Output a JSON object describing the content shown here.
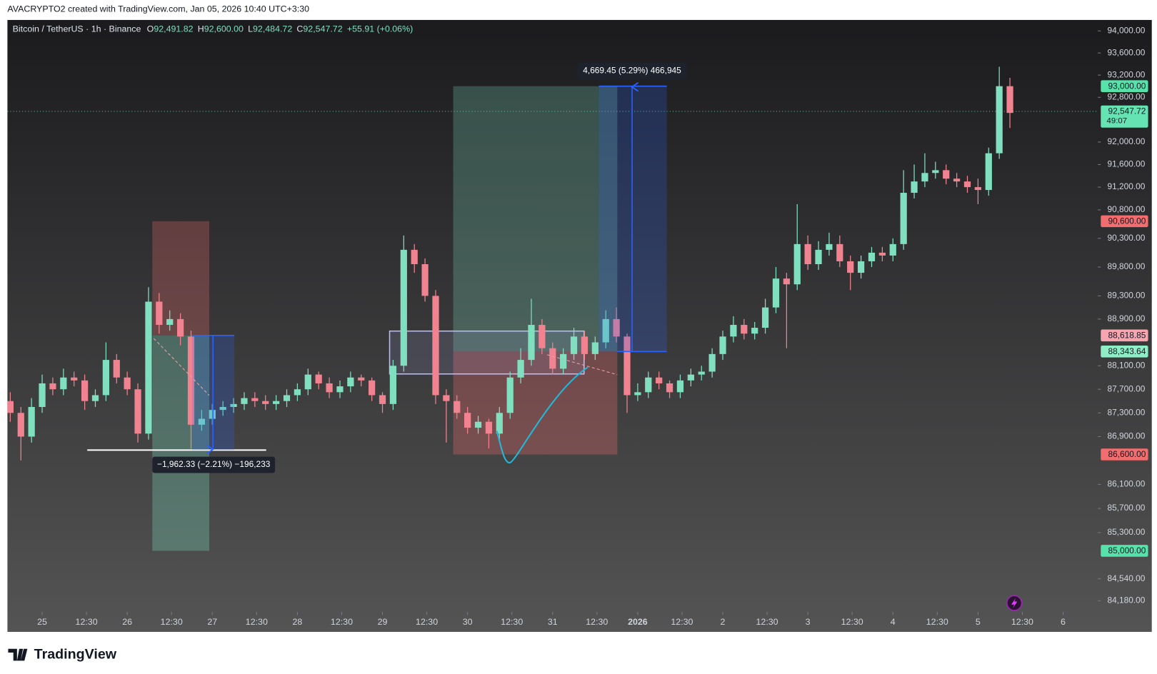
{
  "header": "AVACRYPTO2 created with TradingView.com, Jan 05, 2026 10:40 UTC+3:30",
  "footer": "TradingView",
  "chart_data": {
    "type": "candlestick",
    "title": "Bitcoin / TetherUS · 1h · Binance",
    "legend_values": [
      {
        "key": "O",
        "value": "92,491.82"
      },
      {
        "key": "H",
        "value": "92,600.00"
      },
      {
        "key": "L",
        "value": "92,484.72"
      },
      {
        "key": "C",
        "value": "92,547.72"
      }
    ],
    "change": "+55.91 (+0.06%)",
    "up_color": "#7fdfbf",
    "down_color": "#f0838f",
    "log_scale": true,
    "xlim": [
      -9.8,
      297.8
    ],
    "ylim": [
      84000,
      94200
    ],
    "xticks": [
      {
        "value": 0,
        "label": "25"
      },
      {
        "value": 12.5,
        "label": "12:30"
      },
      {
        "value": 24,
        "label": "26"
      },
      {
        "value": 36.5,
        "label": "12:30"
      },
      {
        "value": 48,
        "label": "27"
      },
      {
        "value": 60.5,
        "label": "12:30"
      },
      {
        "value": 72,
        "label": "28"
      },
      {
        "value": 84.5,
        "label": "12:30"
      },
      {
        "value": 96,
        "label": "29"
      },
      {
        "value": 108.5,
        "label": "12:30"
      },
      {
        "value": 120,
        "label": "30"
      },
      {
        "value": 132.5,
        "label": "12:30"
      },
      {
        "value": 144,
        "label": "31"
      },
      {
        "value": 156.5,
        "label": "12:30"
      },
      {
        "value": 168,
        "label": "2026"
      },
      {
        "value": 180.5,
        "label": "12:30"
      },
      {
        "value": 192,
        "label": "2"
      },
      {
        "value": 204.5,
        "label": "12:30"
      },
      {
        "value": 216,
        "label": "3"
      },
      {
        "value": 228.5,
        "label": "12:30"
      },
      {
        "value": 240,
        "label": "4"
      },
      {
        "value": 252.5,
        "label": "12:30"
      },
      {
        "value": 264,
        "label": "5"
      },
      {
        "value": 276.5,
        "label": "12:30"
      },
      {
        "value": 288,
        "label": "6"
      }
    ],
    "yticks": [
      {
        "value": 94000,
        "label": "94,000.00"
      },
      {
        "value": 93600,
        "label": "93,600.00"
      },
      {
        "value": 93200,
        "label": "93,200.00"
      },
      {
        "value": 92800,
        "label": "92,800.00"
      },
      {
        "value": 92000,
        "label": "92,000.00"
      },
      {
        "value": 91600,
        "label": "91,600.00"
      },
      {
        "value": 91200,
        "label": "91,200.00"
      },
      {
        "value": 90800,
        "label": "90,800.00"
      },
      {
        "value": 90300,
        "label": "90,300.00"
      },
      {
        "value": 89800,
        "label": "89,800.00"
      },
      {
        "value": 89300,
        "label": "89,300.00"
      },
      {
        "value": 88900,
        "label": "88,900.00"
      },
      {
        "value": 88100,
        "label": "88,100.00"
      },
      {
        "value": 87700,
        "label": "87,700.00"
      },
      {
        "value": 87300,
        "label": "87,300.00"
      },
      {
        "value": 86900,
        "label": "86,900.00"
      },
      {
        "value": 86100,
        "label": "86,100.00"
      },
      {
        "value": 85700,
        "label": "85,700.00"
      },
      {
        "value": 85300,
        "label": "85,300.00"
      },
      {
        "value": 84540,
        "label": "84,540.00"
      },
      {
        "value": 84180,
        "label": "84,180.00"
      }
    ],
    "price_labels": [
      {
        "value": 93000,
        "label": "93,000.00",
        "color": "#55e3aa"
      },
      {
        "value": 90600,
        "label": "90,600.00",
        "color": "#f26d6d"
      },
      {
        "value": 88618.85,
        "label": "88,618.85",
        "color": "#f7a6b0"
      },
      {
        "value": 88343.64,
        "label": "88,343.64",
        "color": "#8eefc6"
      },
      {
        "value": 86600,
        "label": "86,600.00",
        "color": "#f26d6d"
      },
      {
        "value": 85000,
        "label": "85,000.00",
        "color": "#55e3aa"
      }
    ],
    "last_price": {
      "value": 92547.72,
      "label": "92,547.72",
      "countdown": "49:07",
      "color": "#66e3b3"
    },
    "measures": [
      {
        "label": "4,669.45 (5.29%) 466,945"
      },
      {
        "label": "−1,962.33 (−2.21%) −196,233"
      }
    ],
    "x": [
      -9,
      -6,
      -3,
      0,
      3,
      6,
      9,
      12,
      15,
      18,
      21,
      24,
      27,
      30,
      33,
      36,
      39,
      42,
      45,
      48,
      51,
      54,
      57,
      60,
      63,
      66,
      69,
      72,
      75,
      78,
      81,
      84,
      87,
      90,
      93,
      96,
      99,
      102,
      105,
      108,
      111,
      114,
      117,
      120,
      123,
      126,
      129,
      132,
      135,
      138,
      141,
      144,
      147,
      150,
      153,
      156,
      159,
      162,
      165,
      168,
      171,
      174,
      177,
      180,
      183,
      186,
      189,
      192,
      195,
      198,
      201,
      204,
      207,
      210,
      213,
      216,
      219,
      222,
      225,
      228,
      231,
      234,
      237,
      240,
      243,
      246,
      249,
      252,
      255,
      258,
      261,
      264,
      267,
      270,
      273
    ],
    "open": [
      87500,
      87300,
      86900,
      87400,
      87800,
      87700,
      87900,
      87850,
      87500,
      87600,
      88200,
      87900,
      87700,
      86950,
      89200,
      88800,
      88900,
      88600,
      87100,
      87200,
      87350,
      87400,
      87450,
      87550,
      87500,
      87450,
      87500,
      87600,
      87700,
      87950,
      87800,
      87650,
      87750,
      87900,
      87850,
      87600,
      87450,
      88100,
      90100,
      89850,
      89300,
      87600,
      87500,
      87300,
      87050,
      87150,
      86950,
      87300,
      87900,
      88200,
      88800,
      88400,
      88050,
      88300,
      88600,
      88300,
      88500,
      88900,
      88600,
      87600,
      87650,
      87900,
      87800,
      87650,
      87850,
      87950,
      88000,
      88300,
      88600,
      88800,
      88650,
      88750,
      89100,
      89600,
      89500,
      90200,
      89850,
      90100,
      90200,
      89900,
      89700,
      89900,
      90050,
      90000,
      90200,
      91100,
      91300,
      91450,
      91500,
      91350,
      91300,
      91200,
      91150,
      91800,
      93000
    ],
    "high": [
      87650,
      87400,
      87550,
      87950,
      87900,
      88050,
      88000,
      87950,
      87700,
      88500,
      88300,
      88000,
      87800,
      89450,
      89350,
      89050,
      89000,
      88700,
      87350,
      87450,
      87500,
      87550,
      87650,
      87650,
      87600,
      87600,
      87700,
      87800,
      88050,
      88000,
      87900,
      87850,
      88000,
      87950,
      87900,
      87650,
      88200,
      90350,
      90200,
      89950,
      89400,
      87700,
      87600,
      87400,
      87250,
      87200,
      87400,
      88000,
      88400,
      89250,
      88900,
      88500,
      88400,
      88750,
      88700,
      88600,
      89050,
      89100,
      88650,
      87800,
      88000,
      88000,
      87850,
      87950,
      88050,
      88100,
      88400,
      88700,
      88950,
      88900,
      88850,
      89250,
      89800,
      89700,
      90900,
      90350,
      90250,
      90400,
      90350,
      90000,
      90000,
      90150,
      90150,
      90300,
      91500,
      91600,
      91800,
      91650,
      91600,
      91450,
      91400,
      91350,
      91900,
      93350,
      93150
    ],
    "low": [
      87150,
      86500,
      86800,
      87300,
      87600,
      87600,
      87750,
      87350,
      87400,
      87500,
      87800,
      87600,
      86800,
      86850,
      88650,
      88700,
      88450,
      86700,
      87000,
      87100,
      87250,
      87300,
      87350,
      87400,
      87350,
      87350,
      87400,
      87500,
      87600,
      87700,
      87550,
      87550,
      87650,
      87750,
      87500,
      87300,
      87350,
      88000,
      89700,
      89200,
      87450,
      86800,
      87200,
      86950,
      86950,
      86700,
      86850,
      87200,
      87800,
      88100,
      88300,
      87950,
      87950,
      88200,
      88200,
      88200,
      88400,
      88500,
      87300,
      87500,
      87550,
      87700,
      87550,
      87550,
      87750,
      87850,
      87900,
      88200,
      88500,
      88550,
      88550,
      88650,
      89000,
      88400,
      89400,
      89750,
      89750,
      90000,
      89800,
      89400,
      89600,
      89800,
      89900,
      89900,
      90100,
      91000,
      91200,
      91350,
      91250,
      91200,
      91100,
      90900,
      91050,
      91700,
      92250
    ],
    "close": [
      87300,
      86900,
      87400,
      87800,
      87700,
      87900,
      87850,
      87500,
      87600,
      88200,
      87900,
      87700,
      86950,
      89200,
      88800,
      88900,
      88600,
      87100,
      87200,
      87350,
      87400,
      87450,
      87550,
      87500,
      87450,
      87500,
      87600,
      87700,
      87950,
      87800,
      87650,
      87750,
      87900,
      87850,
      87600,
      87450,
      88100,
      90100,
      89850,
      89300,
      87600,
      87500,
      87300,
      87050,
      87150,
      86950,
      87300,
      87900,
      88200,
      88800,
      88400,
      88050,
      88300,
      88600,
      88300,
      88500,
      88900,
      88600,
      87600,
      87650,
      87900,
      87800,
      87650,
      87850,
      87950,
      88000,
      88300,
      88600,
      88800,
      88650,
      88750,
      89100,
      89600,
      89500,
      90200,
      89850,
      90100,
      90200,
      89900,
      89700,
      89900,
      90050,
      90000,
      90200,
      91100,
      91300,
      91450,
      91500,
      91350,
      91300,
      91200,
      91150,
      91800,
      93000,
      92520
    ]
  }
}
